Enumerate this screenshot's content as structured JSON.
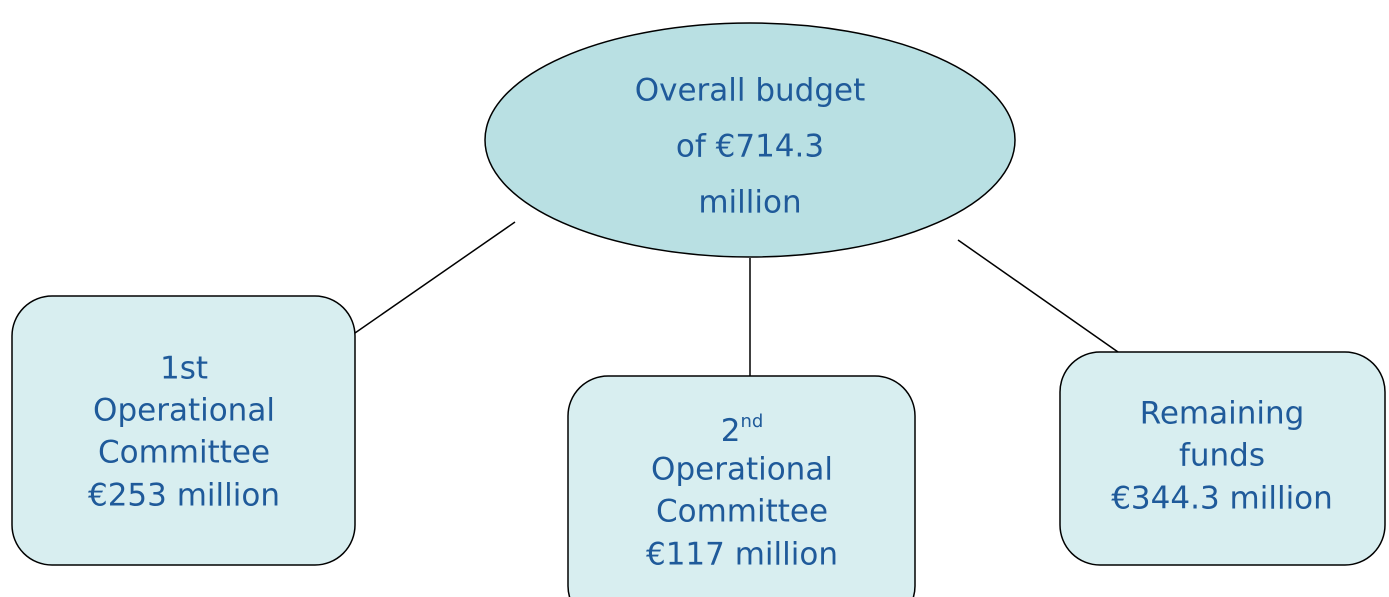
{
  "nodes": [
    {
      "lines": [
        "Overall budget",
        "of €714.3",
        "million"
      ]
    },
    {
      "lines": [
        "1st",
        "Operational",
        "Committee",
        "€253 million"
      ]
    },
    {
      "heading": {
        "base": "2",
        "sup": "nd"
      },
      "lines": [
        "Operational",
        "Committee",
        "€117 million"
      ]
    },
    {
      "lines": [
        "Remaining",
        "funds",
        "€344.3 million"
      ]
    }
  ]
}
